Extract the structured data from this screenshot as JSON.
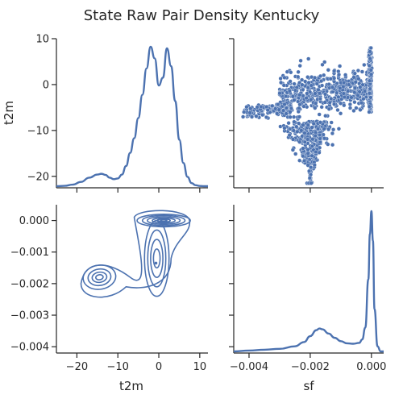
{
  "title": "State Raw Pair Density Kentucky",
  "chart_data": [
    {
      "panel": "t2m-t2m",
      "type": "line",
      "kind": "kde",
      "variable": "t2m",
      "xlim": [
        -25,
        12
      ],
      "x": [
        -25,
        -23,
        -21,
        -19,
        -17,
        -15,
        -14,
        -13,
        -12,
        -11,
        -10,
        -9,
        -8,
        -7,
        -6,
        -5,
        -4,
        -3,
        -2,
        -1,
        0,
        1,
        2,
        3,
        4,
        5,
        6,
        7,
        8,
        9,
        10,
        11,
        12
      ],
      "density": [
        0.0,
        0.005,
        0.02,
        0.055,
        0.11,
        0.15,
        0.16,
        0.145,
        0.11,
        0.09,
        0.1,
        0.15,
        0.26,
        0.43,
        0.62,
        0.88,
        1.18,
        1.52,
        1.8,
        1.65,
        1.3,
        1.4,
        1.78,
        1.55,
        1.1,
        0.6,
        0.3,
        0.12,
        0.04,
        0.012,
        0.003,
        0.0,
        0.0
      ]
    },
    {
      "panel": "t2m-sf",
      "type": "scatter",
      "x_variable": "sf",
      "y_variable": "t2m",
      "xlim": [
        -0.0045,
        0.0004
      ],
      "ylim": [
        -22.5,
        10
      ]
    },
    {
      "panel": "sf-t2m",
      "type": "contour",
      "kind": "kde",
      "x_variable": "t2m",
      "y_variable": "sf",
      "xlim": [
        -25,
        12
      ],
      "ylim": [
        -0.0042,
        0.0005
      ]
    },
    {
      "panel": "sf-sf",
      "type": "line",
      "kind": "kde",
      "variable": "sf",
      "xlim": [
        -0.0045,
        0.0004
      ],
      "x": [
        -0.0045,
        -0.004,
        -0.0035,
        -0.003,
        -0.0025,
        -0.0022,
        -0.002,
        -0.0018,
        -0.0017,
        -0.0016,
        -0.0014,
        -0.0012,
        -0.001,
        -0.0008,
        -0.0006,
        -0.0004,
        -0.0003,
        -0.0002,
        -0.0001,
        -5e-05,
        0.0,
        5e-05,
        0.0001,
        0.0002,
        0.0003,
        0.0004
      ],
      "density": [
        0.0,
        0.01,
        0.02,
        0.03,
        0.06,
        0.11,
        0.18,
        0.25,
        0.27,
        0.26,
        0.21,
        0.16,
        0.12,
        0.095,
        0.09,
        0.1,
        0.14,
        0.28,
        0.85,
        1.38,
        1.65,
        1.3,
        0.5,
        0.06,
        0.0,
        0.0
      ]
    }
  ],
  "axes": {
    "y_label_top": "t2m",
    "x_label_left": "t2m",
    "x_label_right": "sf",
    "y_ticks_t2m": [
      {
        "value": 10,
        "label": "10"
      },
      {
        "value": 0,
        "label": "0"
      },
      {
        "value": -10,
        "label": "−10"
      },
      {
        "value": -20,
        "label": "−20"
      }
    ],
    "y_ticks_sf": [
      {
        "value": 0.0,
        "label": "0.000"
      },
      {
        "value": -0.001,
        "label": "−0.001"
      },
      {
        "value": -0.002,
        "label": "−0.002"
      },
      {
        "value": -0.003,
        "label": "−0.003"
      },
      {
        "value": -0.004,
        "label": "−0.004"
      }
    ],
    "x_ticks_t2m": [
      {
        "value": -20,
        "label": "−20"
      },
      {
        "value": -10,
        "label": "−10"
      },
      {
        "value": 0,
        "label": "0"
      },
      {
        "value": 10,
        "label": "10"
      }
    ],
    "x_ticks_sf": [
      {
        "value": -0.004,
        "label": "−0.004"
      },
      {
        "value": -0.002,
        "label": "−0.002"
      },
      {
        "value": 0.0,
        "label": "0.000"
      }
    ]
  }
}
